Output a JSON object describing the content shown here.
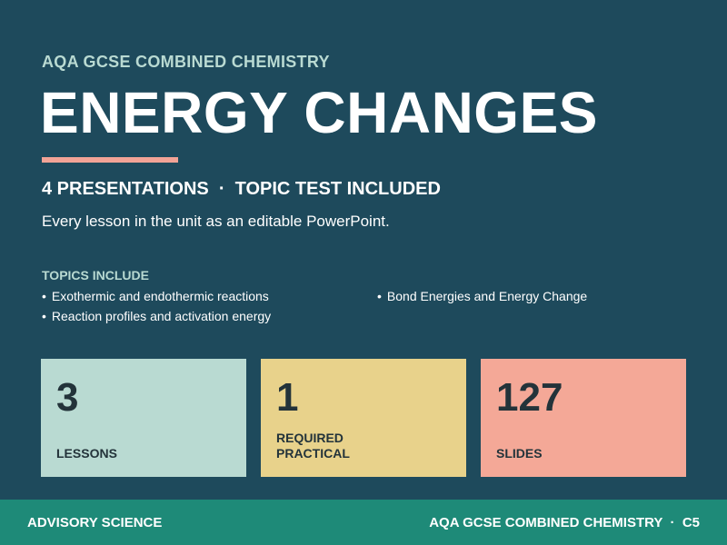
{
  "header": {
    "kicker": "AQA GCSE COMBINED CHEMISTRY",
    "title": "ENERGY CHANGES",
    "subhead": "4 PRESENTATIONS  ·  TOPIC TEST INCLUDED",
    "tagline": "Every lesson in the unit as an editable PowerPoint."
  },
  "topics": {
    "label": "TOPICS INCLUDE",
    "bullet": "•",
    "items": [
      "Exothermic and endothermic reactions",
      "Reaction profiles and activation energy",
      "Bond Energies and Energy Change"
    ]
  },
  "stats": [
    {
      "value": "3",
      "label": "LESSONS",
      "color": "#b9dad2"
    },
    {
      "value": "1",
      "label": "REQUIRED PRACTICAL",
      "color": "#e8d28b"
    },
    {
      "value": "127",
      "label": "SLIDES",
      "color": "#f4a897"
    }
  ],
  "footer": {
    "left": "ADVISORY SCIENCE",
    "right": "AQA GCSE COMBINED CHEMISTRY  ·  C5"
  },
  "colors": {
    "background": "#1e4a5c",
    "accent": "#f2a396",
    "footer": "#1e8a78"
  }
}
